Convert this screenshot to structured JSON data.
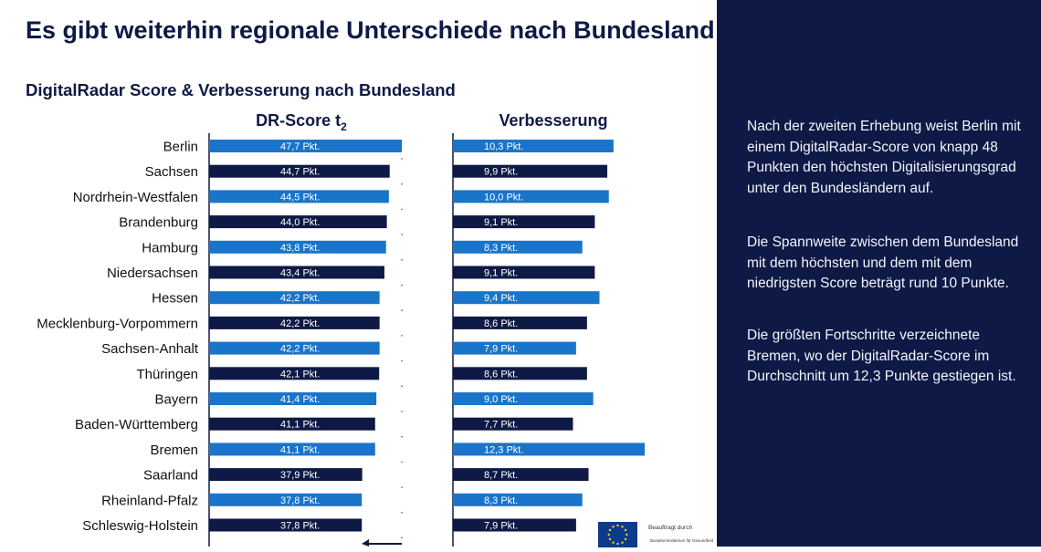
{
  "header": {
    "title": "Es gibt weiterhin regionale Unterschiede nach Bundesland"
  },
  "chart_data": {
    "type": "bar",
    "orientation": "horizontal",
    "title": "DigitalRadar Score & Verbesserung nach Bundesland",
    "categories": [
      "Berlin",
      "Sachsen",
      "Nordrhein-Westfalen",
      "Brandenburg",
      "Hamburg",
      "Niedersachsen",
      "Hessen",
      "Mecklenburg-Vorpommern",
      "Sachsen-Anhalt",
      "Thüringen",
      "Bayern",
      "Baden-Württemberg",
      "Bremen",
      "Saarland",
      "Rheinland-Pfalz",
      "Schleswig-Holstein"
    ],
    "score_title_base": "DR-Score t",
    "score_title_sub": "2",
    "improvement_title": "Verbesserung",
    "unit_label": "Pkt.",
    "score_values": [
      47.7,
      44.7,
      44.5,
      44.0,
      43.8,
      43.4,
      42.2,
      42.2,
      42.2,
      42.1,
      41.4,
      41.1,
      41.1,
      37.9,
      37.8,
      37.8
    ],
    "score_labels": [
      "47,7 Pkt.",
      "44,7 Pkt.",
      "44,5 Pkt.",
      "44,0 Pkt.",
      "43,8 Pkt.",
      "43,4 Pkt.",
      "42,2 Pkt.",
      "42,2 Pkt.",
      "42,2 Pkt.",
      "42,1 Pkt.",
      "41,4 Pkt.",
      "41,1 Pkt.",
      "41,1 Pkt.",
      "37,9 Pkt.",
      "37,8 Pkt.",
      "37,8 Pkt."
    ],
    "improvement_values": [
      10.3,
      9.9,
      10.0,
      9.1,
      8.3,
      9.1,
      9.4,
      8.6,
      7.9,
      8.6,
      9.0,
      7.7,
      12.3,
      8.7,
      8.3,
      7.9
    ],
    "improvement_labels": [
      "10,3 Pkt.",
      "9,9 Pkt.",
      "10,0 Pkt.",
      "9,1 Pkt.",
      "8,3 Pkt.",
      "9,1 Pkt.",
      "9,4 Pkt.",
      "8,6 Pkt.",
      "7,9 Pkt.",
      "8,6 Pkt.",
      "9,0 Pkt.",
      "7,7 Pkt.",
      "12,3 Pkt.",
      "8,7 Pkt.",
      "8,3 Pkt.",
      "7,9 Pkt."
    ],
    "score_range": [
      0,
      47.7
    ],
    "improvement_range": [
      0,
      12.3
    ],
    "bar_color_odd": "#1a74c9",
    "bar_color_even": "#0e1a45"
  },
  "sidebar": {
    "paragraphs": [
      "Nach der zweiten Erhebung weist Berlin mit einem DigitalRadar-Score von knapp 48 Punkten den höchsten Digitalisierungsgrad unter den Bundesländern auf.",
      "Die Spannweite zwischen dem Bundesland mit dem höchsten und dem mit dem niedrigsten Score beträgt rund 10 Punkte.",
      "Die größten Fortschritte verzeichnete Bremen, wo der DigitalRadar-Score im Durchschnitt um 12,3 Punkte gestiegen ist."
    ]
  },
  "footer": {
    "logo_label": "Beauftragt durch",
    "ministry_label": "Bundesministerium für Gesundheit"
  },
  "colors": {
    "navy": "#0e1a45",
    "accent_blue": "#1a74c9",
    "panel": "#0e1a45"
  }
}
